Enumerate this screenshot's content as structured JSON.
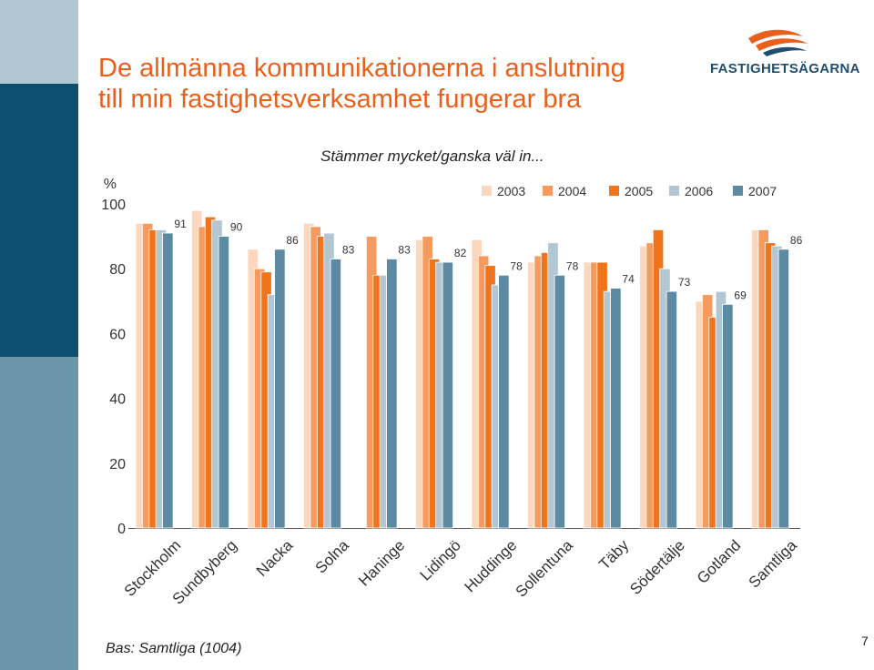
{
  "title_line1": "De allmänna kommunikationerna i anslutning",
  "title_line2": "till min fastighetsverksamhet fungerar bra",
  "brand": "FASTIGHETSÄGARNA",
  "footnote": "Bas: Samtliga (1004)",
  "page_number": "7",
  "colors": {
    "title": "#e8601c",
    "stripe_top": "#b3c7d3",
    "stripe_mid": "#0d4f6e",
    "stripe_bottom": "#6b95aa",
    "logo_orange": "#e8601c",
    "logo_blue": "#1f4e6e"
  },
  "chart_data": {
    "type": "bar",
    "title": "Stämmer mycket/ganska väl in...",
    "yunit": "%",
    "ylim": [
      0,
      100
    ],
    "yticks": [
      0,
      20,
      40,
      60,
      80,
      100
    ],
    "legend_position": "top-right",
    "grid": false,
    "categories": [
      "Stockholm",
      "Sundbyberg",
      "Nacka",
      "Solna",
      "Haninge",
      "Lidingö",
      "Huddinge",
      "Sollentuna",
      "Täby",
      "Södertälje",
      "Gotland",
      "Samtliga"
    ],
    "series": [
      {
        "name": "2003",
        "color": "#fbd7bd",
        "values": [
          94,
          98,
          86,
          94,
          null,
          89,
          89,
          82,
          82,
          87,
          70,
          92
        ]
      },
      {
        "name": "2004",
        "color": "#f69a5e",
        "values": [
          94,
          93,
          80,
          93,
          90,
          90,
          84,
          84,
          82,
          88,
          72,
          92
        ]
      },
      {
        "name": "2005",
        "color": "#f0741c",
        "values": [
          92,
          96,
          79,
          90,
          78,
          83,
          81,
          85,
          82,
          92,
          65,
          88
        ]
      },
      {
        "name": "2006",
        "color": "#b3c7d3",
        "values": [
          92,
          95,
          72,
          91,
          78,
          82,
          75,
          88,
          73,
          80,
          73,
          87
        ]
      },
      {
        "name": "2007",
        "color": "#5b8aa2",
        "values": [
          91,
          90,
          86,
          83,
          83,
          82,
          78,
          78,
          74,
          73,
          69,
          86
        ]
      }
    ],
    "data_labels": [
      "91",
      "90",
      "86",
      "83",
      "83",
      "82",
      "78",
      "78",
      "74",
      "73",
      "69",
      "86"
    ]
  }
}
